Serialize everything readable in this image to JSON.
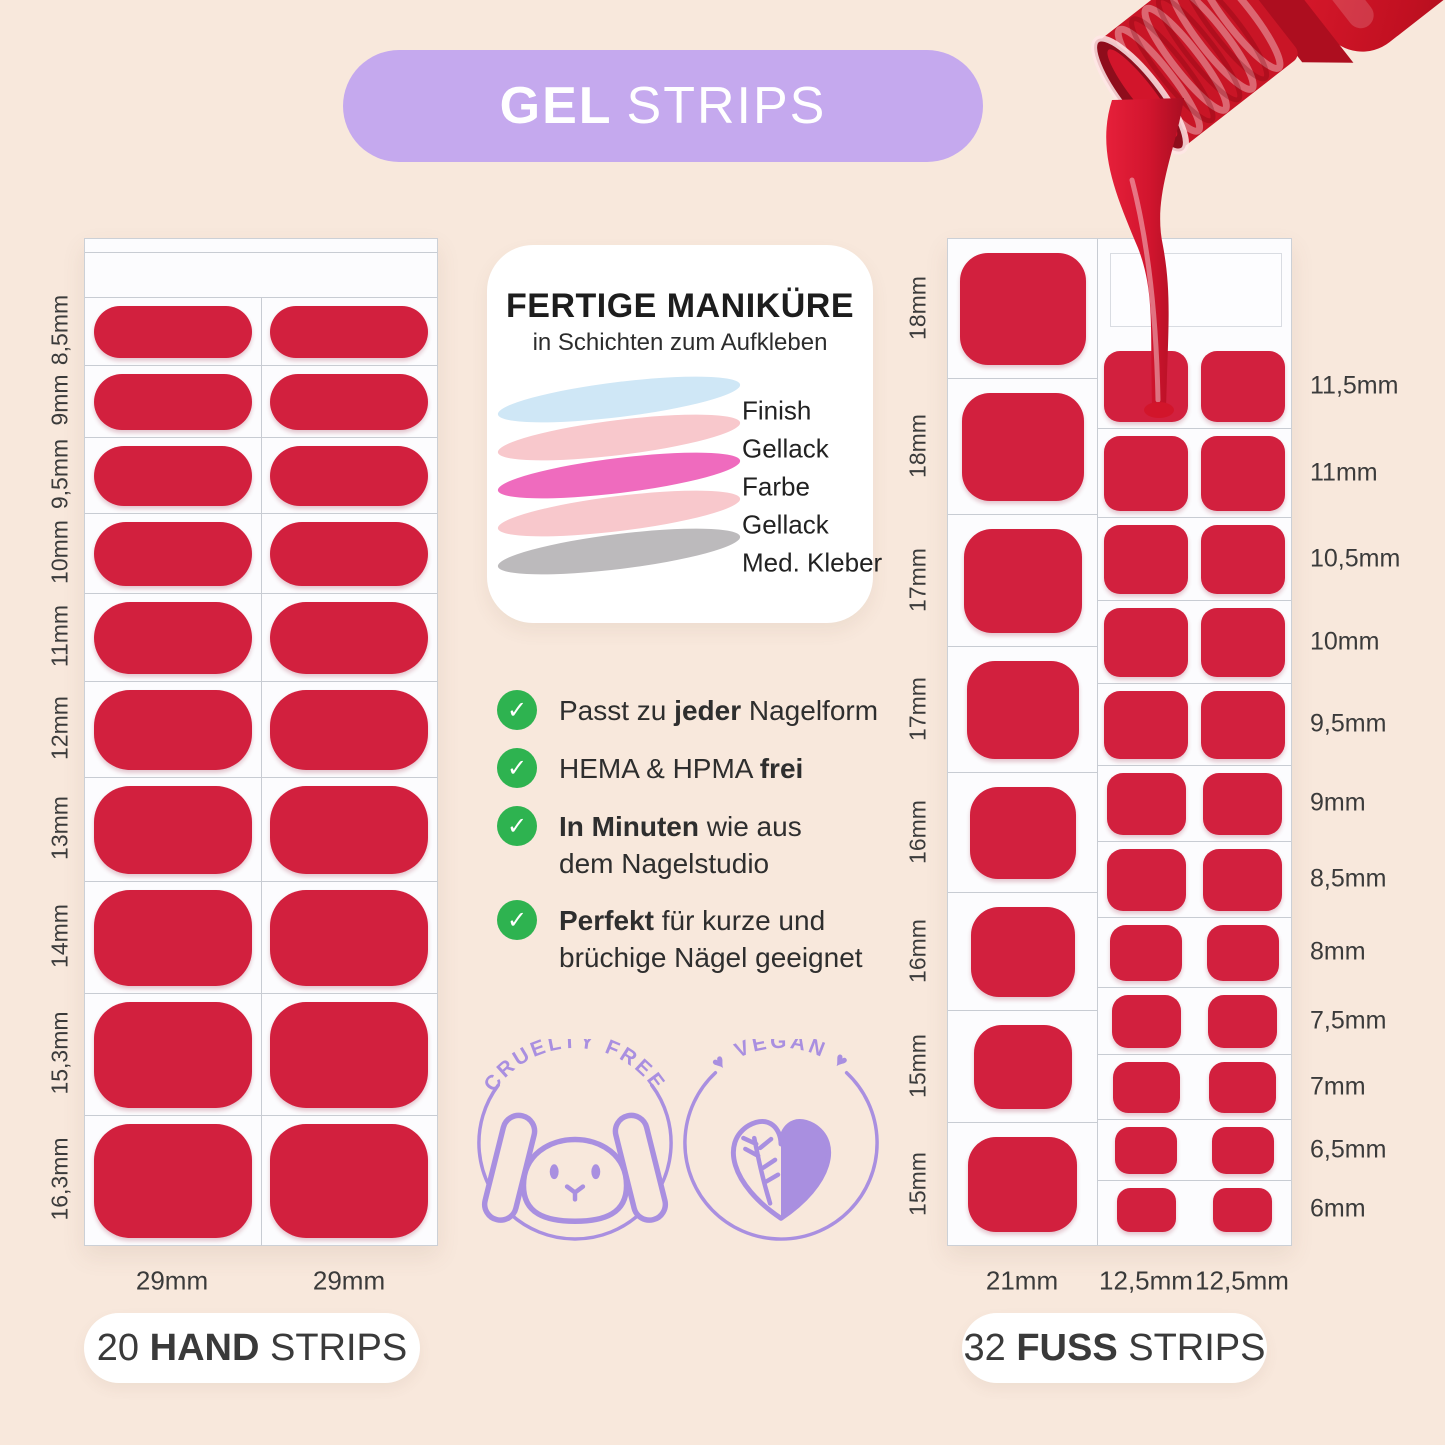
{
  "header": {
    "title_bold": "GEL",
    "title_rest": "STRIPS"
  },
  "hand_sheet": {
    "row_labels": [
      "8,5mm",
      "9mm",
      "9,5mm",
      "10mm",
      "11mm",
      "12mm",
      "13mm",
      "14mm",
      "15,3mm",
      "16,3mm"
    ],
    "column_widths": [
      "29mm",
      "29mm"
    ],
    "caption": {
      "count": "20",
      "bold": "HAND",
      "rest": "STRIPS"
    }
  },
  "foot_sheet": {
    "big_row_labels": [
      "18mm",
      "18mm",
      "17mm",
      "17mm",
      "16mm",
      "16mm",
      "15mm",
      "15mm"
    ],
    "small_row_labels": [
      "11,5mm",
      "11mm",
      "10,5mm",
      "10mm",
      "9,5mm",
      "9mm",
      "8,5mm",
      "8mm",
      "7,5mm",
      "7mm",
      "6,5mm",
      "6mm"
    ],
    "column_widths": [
      "21mm",
      "12,5mm",
      "12,5mm"
    ],
    "caption": {
      "count": "32",
      "bold": "FUSS",
      "rest": "STRIPS"
    }
  },
  "layers_card": {
    "title": "FERTIGE MANIKÜRE",
    "subtitle": "in Schichten zum Aufkleben",
    "layers": [
      {
        "label": "Finish",
        "color": "#cfe7f6"
      },
      {
        "label": "Gellack",
        "color": "#f8c8cc"
      },
      {
        "label": "Farbe",
        "color": "#ef6bbe"
      },
      {
        "label": "Gellack",
        "color": "#f8c8cc"
      },
      {
        "label": "Med. Kleber",
        "color": "#bcbabc"
      }
    ]
  },
  "benefits": [
    {
      "parts": [
        {
          "t": "Passt zu "
        },
        {
          "t": "jeder",
          "b": true
        },
        {
          "t": " Nagelform"
        }
      ]
    },
    {
      "parts": [
        {
          "t": "HEMA & HPMA "
        },
        {
          "t": "frei",
          "b": true
        }
      ]
    },
    {
      "parts": [
        {
          "t": "In Minuten",
          "b": true
        },
        {
          "t": " wie aus"
        },
        {
          "br": true
        },
        {
          "t": "dem Nagelstudio"
        }
      ]
    },
    {
      "parts": [
        {
          "t": "Perfekt",
          "b": true
        },
        {
          "t": " für kurze und"
        },
        {
          "br": true
        },
        {
          "t": "brüchige Nägel geeignet"
        }
      ]
    }
  ],
  "badges": [
    {
      "label": "CRUELTY FREE",
      "icon": "bunny-icon",
      "heart": "♥"
    },
    {
      "label": "VEGAN",
      "icon": "vegan-heart-leaf-icon",
      "heart": "♥"
    }
  ],
  "colors": {
    "background": "#f8e8dc",
    "strip_red": "#d2203e",
    "header_purple": "#c5a9ee",
    "badge_purple": "#a98fe0",
    "check_green": "#2eb350",
    "text": "#333333"
  }
}
